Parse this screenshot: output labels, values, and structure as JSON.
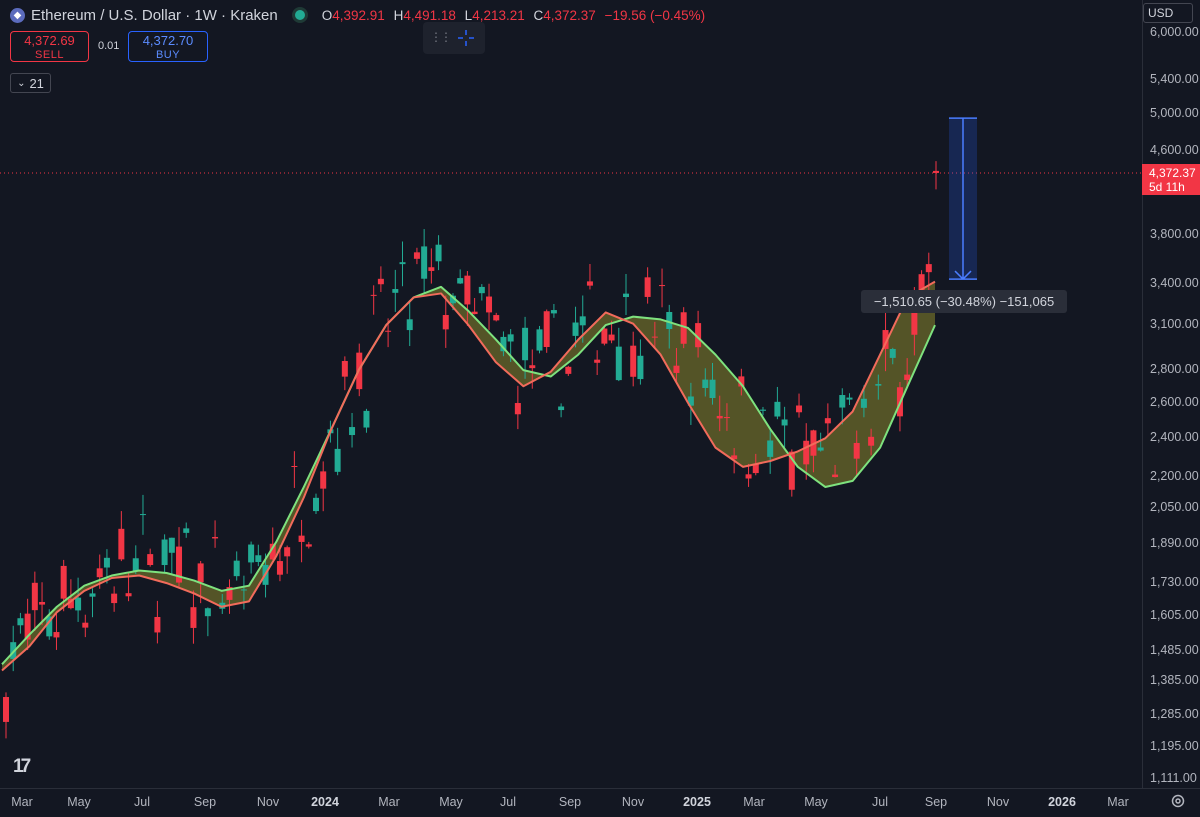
{
  "header": {
    "symbol_title": "Ethereum / U.S. Dollar · 1W · Kraken",
    "o_label": "O",
    "o_value": "4,392.91",
    "h_label": "H",
    "h_value": "4,491.18",
    "l_label": "L",
    "l_value": "4,213.21",
    "c_label": "C",
    "c_value": "4,372.37",
    "change": "−19.56 (−0.45%)"
  },
  "trade": {
    "sell_price": "4,372.69",
    "sell_label": "SELL",
    "spread": "0.01",
    "buy_price": "4,372.70",
    "buy_label": "BUY"
  },
  "indicator_toggle": {
    "icon": "chevron-down-icon",
    "label": "21"
  },
  "price_axis": {
    "currency": "USD",
    "labels": [
      "6,000.00",
      "5,400.00",
      "5,000.00",
      "4,600.00",
      "3,800.00",
      "3,400.00",
      "3,100.00",
      "2,800.00",
      "2,600.00",
      "2,400.00",
      "2,200.00",
      "2,050.00",
      "1,890.00",
      "1,730.00",
      "1,605.00",
      "1,485.00",
      "1,385.00",
      "1,285.00",
      "1,195.00",
      "1,111.00"
    ],
    "current_price": "4,372.37",
    "countdown": "5d 11h"
  },
  "time_axis": {
    "labels": [
      "Mar",
      "May",
      "Jul",
      "Sep",
      "Nov",
      "2024",
      "Mar",
      "May",
      "Jul",
      "Sep",
      "Nov",
      "2025",
      "Mar",
      "May",
      "Jul",
      "Sep",
      "Nov",
      "2026",
      "Mar"
    ]
  },
  "measure_tool": {
    "text": "−1,510.65 (−30.48%) −151,065"
  },
  "colors": {
    "background": "#131722",
    "up": "#22ab94",
    "down": "#f23645",
    "fast_ma": "#7ee27e",
    "slow_ma": "#f26b5b",
    "band_fill": "#6b6a2a",
    "measure": "#2962ff"
  },
  "chart_data": {
    "type": "candlestick",
    "interval": "1W",
    "scale": "log",
    "ylim": [
      1111,
      6000
    ],
    "x_range": [
      "2023-03",
      "2026-03"
    ],
    "grid": false,
    "candle_count": 130,
    "last_candle": {
      "open": 4392.91,
      "high": 4491.18,
      "low": 4213.21,
      "close": 4372.37
    },
    "series": [
      {
        "kind": "moving-average-band-upper",
        "values": [
          1440,
          1540,
          1640,
          1720,
          1760,
          1780,
          1770,
          1740,
          1700,
          1720,
          1900,
          2150,
          2450,
          2800,
          3100,
          3300,
          3380,
          3200,
          3000,
          2800,
          2760,
          2900,
          3100,
          3160,
          3140,
          3080,
          2900,
          2700,
          2450,
          2250,
          2150,
          2180,
          2350,
          2700,
          3100
        ]
      },
      {
        "kind": "moving-average-band-lower",
        "values": [
          1420,
          1500,
          1620,
          1700,
          1750,
          1760,
          1730,
          1690,
          1640,
          1660,
          1840,
          2100,
          2450,
          2800,
          3100,
          3300,
          3330,
          3100,
          2850,
          2700,
          2790,
          3000,
          3190,
          3110,
          2900,
          2600,
          2350,
          2250,
          2280,
          2330,
          2400,
          2550,
          2900,
          3300,
          3420
        ]
      }
    ]
  }
}
